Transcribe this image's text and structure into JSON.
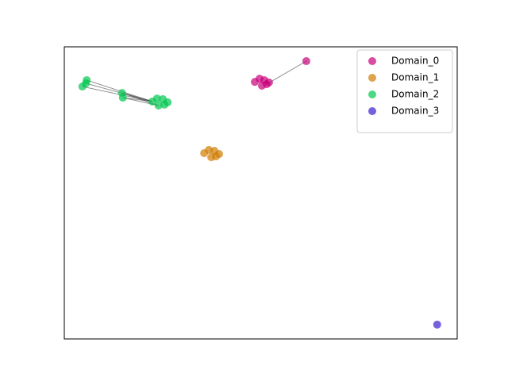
{
  "chart_data": {
    "type": "scatter",
    "xlim": [
      0,
      100
    ],
    "ylim": [
      0,
      100
    ],
    "legend": "upper right",
    "series": [
      {
        "name": "Domain_0",
        "color": "#c8007a",
        "x": [
          48.5,
          49.7,
          50.9,
          52.1,
          50.3,
          51.5,
          61.6
        ],
        "values": [
          88.0,
          89.1,
          88.6,
          87.8,
          86.7,
          87.2,
          95.1
        ],
        "edges": [
          [
            6,
            5
          ]
        ]
      },
      {
        "name": "Domain_1",
        "color": "#d07c00",
        "x": [
          35.6,
          36.8,
          38.2,
          39.4,
          37.4,
          38.6
        ],
        "values": [
          63.6,
          64.7,
          64.4,
          63.3,
          62.2,
          62.5
        ]
      },
      {
        "name": "Domain_2",
        "color": "#00c850",
        "x": [
          22.4,
          23.6,
          25.1,
          26.3,
          24.0,
          25.5,
          5.7,
          5.5,
          4.6,
          14.7,
          14.9
        ],
        "values": [
          81.3,
          82.3,
          82.1,
          81.0,
          79.9,
          80.2,
          88.6,
          87.5,
          86.4,
          84.2,
          82.6
        ],
        "edges": [
          [
            6,
            0
          ],
          [
            7,
            0
          ],
          [
            8,
            0
          ],
          [
            9,
            0
          ],
          [
            9,
            4
          ],
          [
            10,
            0
          ],
          [
            10,
            4
          ]
        ]
      },
      {
        "name": "Domain_3",
        "color": "#3a1ed0",
        "x": [
          94.9
        ],
        "values": [
          4.9
        ]
      }
    ]
  }
}
